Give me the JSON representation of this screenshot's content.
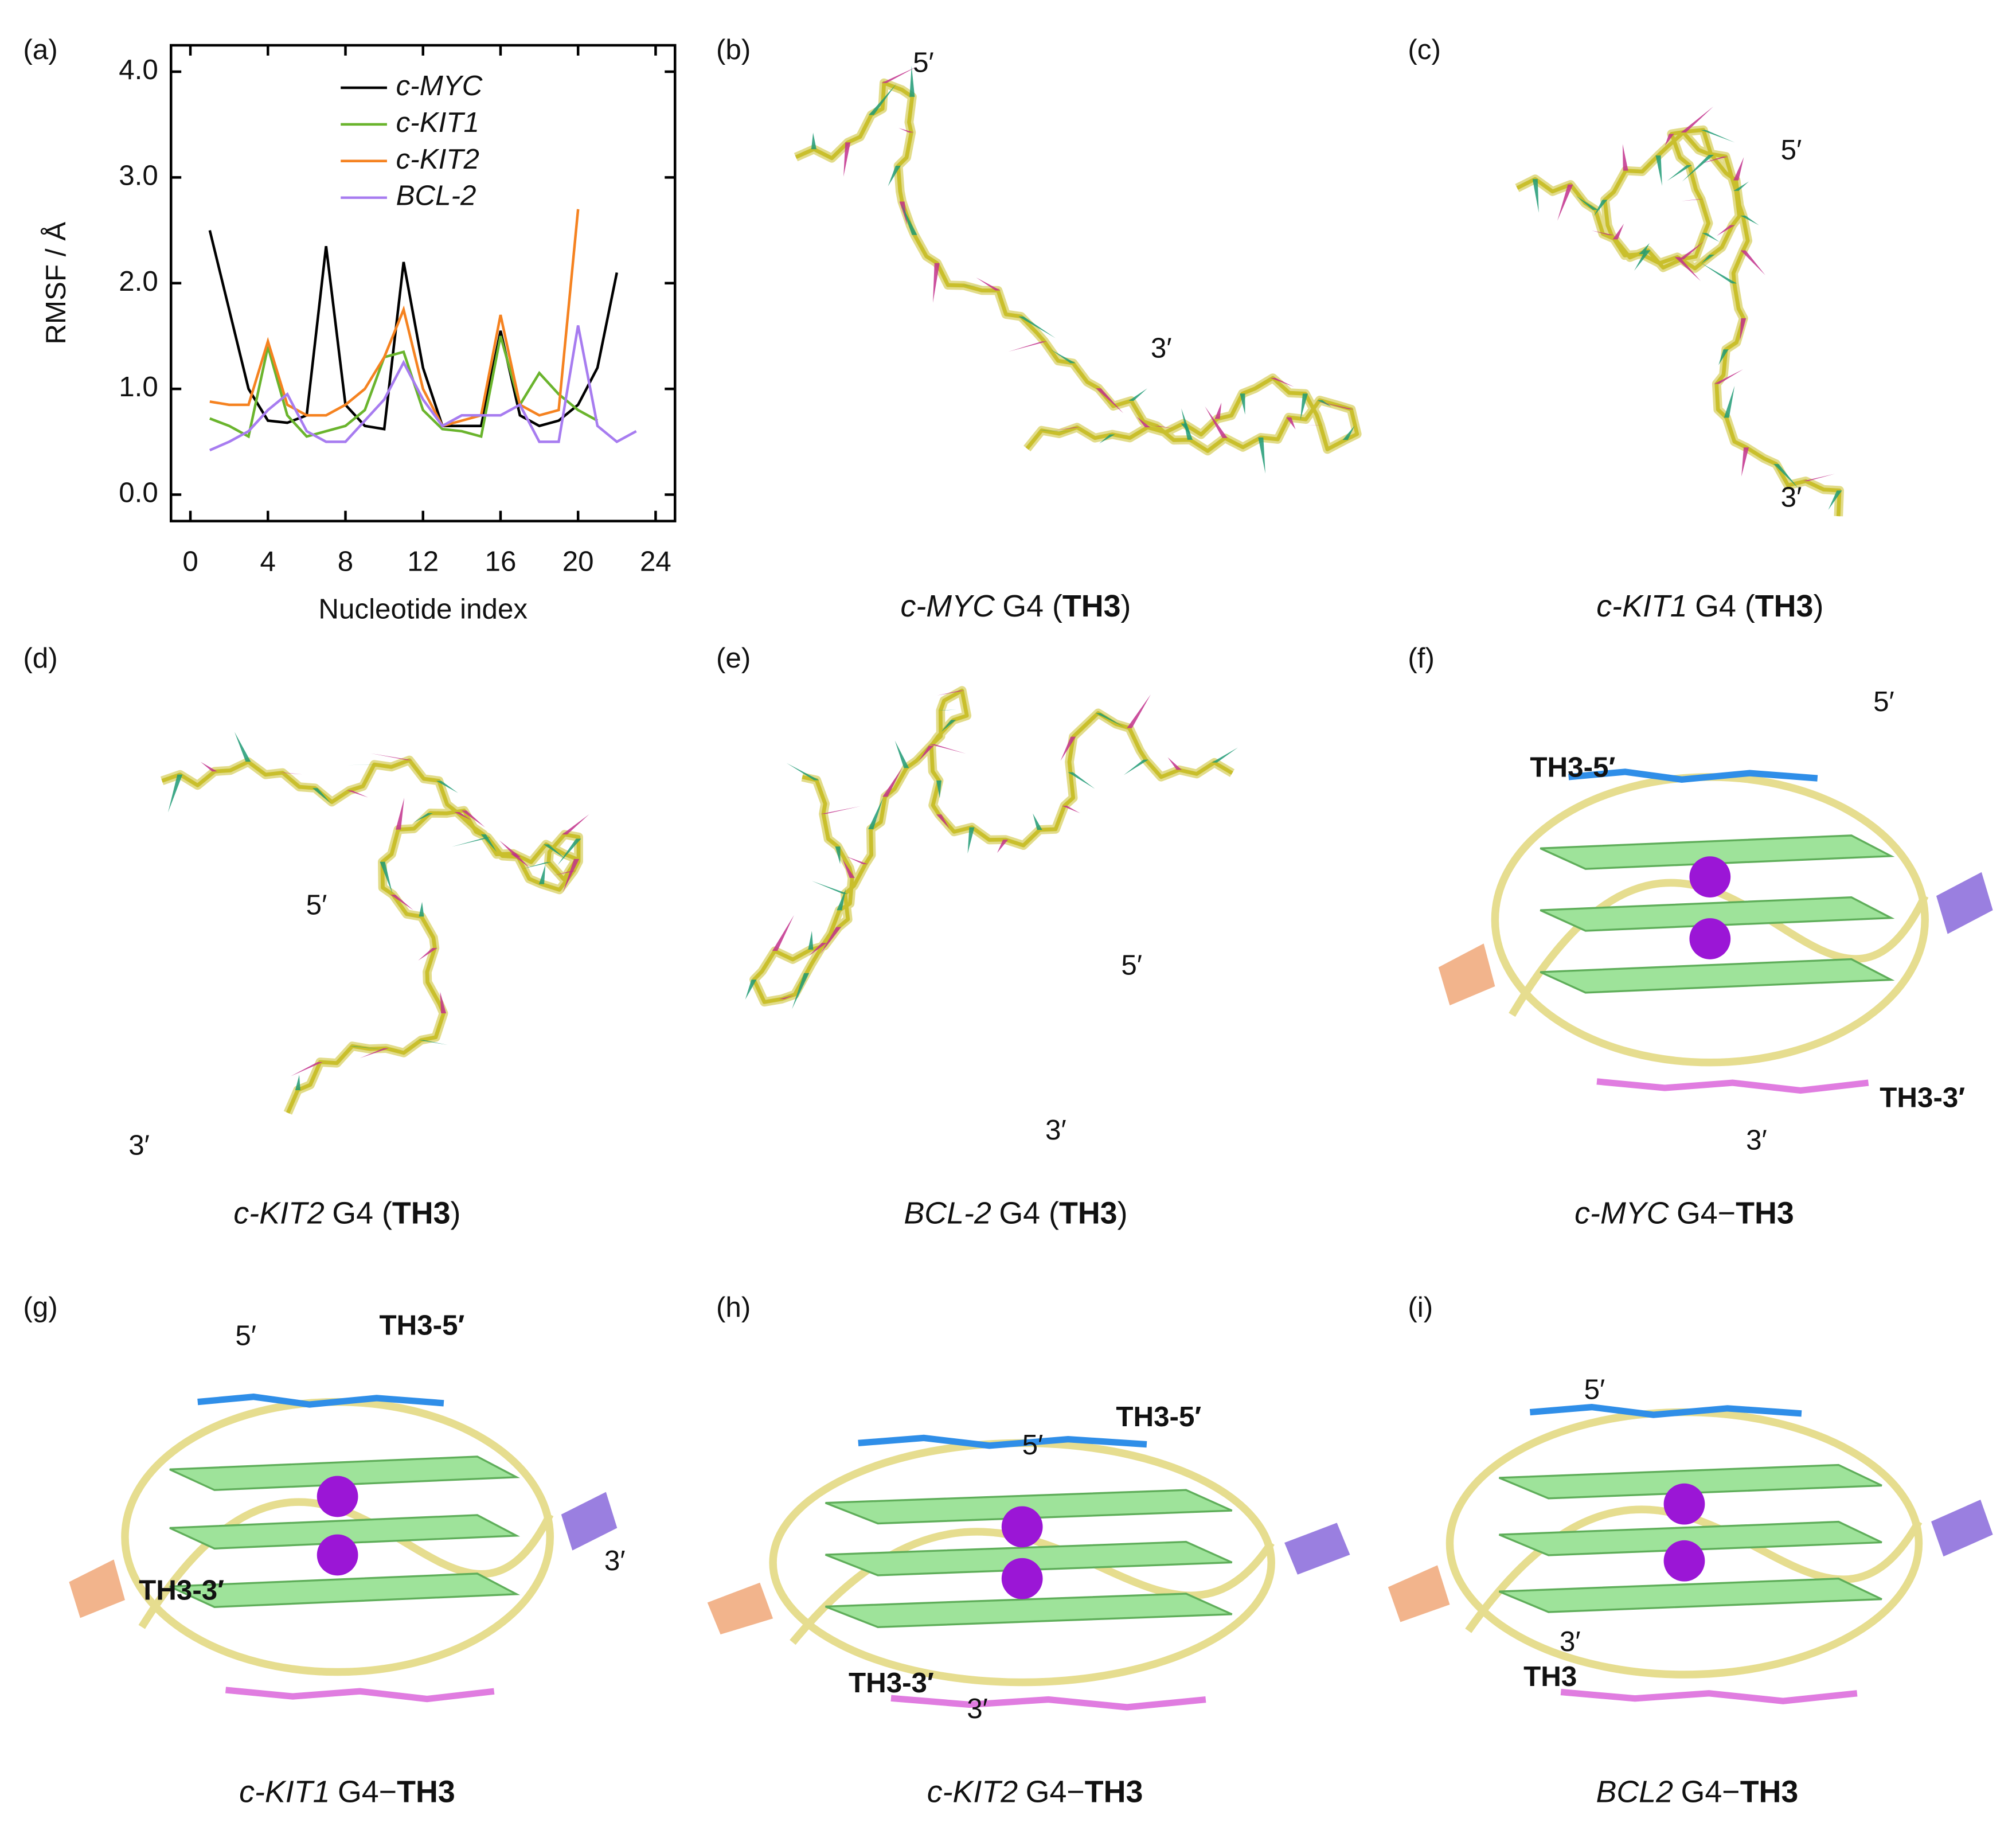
{
  "chart_data": {
    "type": "line",
    "xlabel": "Nucleotide index",
    "ylabel": "RMSF / Å",
    "x": [
      1,
      2,
      3,
      4,
      5,
      6,
      7,
      8,
      9,
      10,
      11,
      12,
      13,
      14,
      15,
      16,
      17,
      18,
      19,
      20,
      21,
      22,
      23
    ],
    "series": [
      {
        "name": "c-MYC",
        "color": "#000000",
        "values": [
          2.5,
          1.75,
          1.0,
          0.7,
          0.68,
          0.75,
          2.35,
          0.85,
          0.65,
          0.62,
          2.2,
          1.2,
          0.65,
          0.65,
          0.65,
          1.55,
          0.75,
          0.65,
          0.7,
          0.85,
          1.2,
          2.1,
          null
        ]
      },
      {
        "name": "c-KIT1",
        "color": "#6ab42d",
        "values": [
          0.72,
          0.65,
          0.55,
          1.4,
          0.75,
          0.55,
          0.6,
          0.65,
          0.8,
          1.3,
          1.35,
          0.8,
          0.62,
          0.6,
          0.55,
          1.5,
          0.85,
          1.15,
          0.95,
          0.8,
          0.7,
          null,
          null
        ]
      },
      {
        "name": "c-KIT2",
        "color": "#f58220",
        "values": [
          0.88,
          0.85,
          0.85,
          1.45,
          0.85,
          0.75,
          0.75,
          0.85,
          1.0,
          1.3,
          1.75,
          1.0,
          0.65,
          0.7,
          0.75,
          1.7,
          0.85,
          0.75,
          0.8,
          2.7,
          null,
          null,
          null
        ]
      },
      {
        "name": "BCL-2",
        "color": "#a77cf0",
        "values": [
          0.42,
          0.5,
          0.6,
          0.8,
          0.95,
          0.6,
          0.5,
          0.5,
          0.7,
          0.9,
          1.25,
          0.9,
          0.65,
          0.75,
          0.75,
          0.75,
          0.85,
          0.5,
          0.5,
          1.6,
          0.65,
          0.5,
          0.6
        ]
      }
    ],
    "xlim": [
      -1,
      25
    ],
    "xticks": [
      0,
      4,
      8,
      12,
      16,
      20,
      24
    ],
    "ylim": [
      -0.25,
      4.25
    ],
    "yticks": [
      {
        "value": 0,
        "label": "0.0"
      },
      {
        "value": 1,
        "label": "1.0"
      },
      {
        "value": 2,
        "label": "2.0"
      },
      {
        "value": 3,
        "label": "3.0"
      },
      {
        "value": 4,
        "label": "4.0"
      }
    ],
    "grid": false,
    "legend": "top-right"
  },
  "chart_label": "(a)",
  "panels": [
    {
      "label": "(b)",
      "kind": "backbone",
      "caption": {
        "gene": "c-MYC",
        "middle": "G4 (",
        "ligand": "TH3",
        "end": ")"
      },
      "annotations": [
        {
          "text": "5′",
          "color": "#000000"
        },
        {
          "text": "3′",
          "color": "#000000"
        }
      ]
    },
    {
      "label": "(c)",
      "kind": "backbone",
      "caption": {
        "gene": "c-KIT1",
        "middle": "G4 (",
        "ligand": "TH3",
        "end": ")"
      },
      "annotations": [
        {
          "text": "5′",
          "color": "#000000"
        },
        {
          "text": "3′",
          "color": "#000000"
        }
      ]
    },
    {
      "label": "(d)",
      "kind": "backbone",
      "caption": {
        "gene": "c-KIT2",
        "middle": "G4 (",
        "ligand": "TH3",
        "end": ")"
      },
      "annotations": [
        {
          "text": "5′",
          "color": "#000000"
        },
        {
          "text": "3′",
          "color": "#000000"
        }
      ]
    },
    {
      "label": "(e)",
      "kind": "backbone",
      "caption": {
        "gene": "BCL-2",
        "middle": "G4 (",
        "ligand": "TH3",
        "end": ")"
      },
      "annotations": [
        {
          "text": "5′",
          "color": "#000000"
        },
        {
          "text": "3′",
          "color": "#000000"
        }
      ]
    },
    {
      "label": "(f)",
      "kind": "complex",
      "caption": {
        "gene": "c-MYC",
        "middle": "G4−",
        "ligand": "TH3"
      },
      "annotations": [
        {
          "text": "5′",
          "color": "#000000"
        },
        {
          "text": "3′",
          "color": "#000000"
        },
        {
          "text": "TH3-5′",
          "color": "#1e6fe0"
        },
        {
          "text": "TH3-3′",
          "color": "#e455e4"
        }
      ]
    },
    {
      "label": "(g)",
      "kind": "complex",
      "caption": {
        "gene": "c-KIT1",
        "middle": "G4−",
        "ligand": "TH3"
      },
      "annotations": [
        {
          "text": "5′",
          "color": "#000000"
        },
        {
          "text": "3′",
          "color": "#000000"
        },
        {
          "text": "TH3-5′",
          "color": "#1e6fe0"
        },
        {
          "text": "TH3-3′",
          "color": "#e455e4"
        }
      ]
    },
    {
      "label": "(h)",
      "kind": "complex",
      "caption": {
        "gene": "c-KIT2",
        "middle": "G4−",
        "ligand": "TH3"
      },
      "annotations": [
        {
          "text": "5′",
          "color": "#000000"
        },
        {
          "text": "3′",
          "color": "#000000"
        },
        {
          "text": "TH3-5′",
          "color": "#1e6fe0"
        },
        {
          "text": "TH3-3′",
          "color": "#e455e4"
        }
      ]
    },
    {
      "label": "(i)",
      "kind": "complex",
      "caption": {
        "gene": "BCL2",
        "middle": "G4−",
        "ligand": "TH3"
      },
      "annotations": [
        {
          "text": "5′",
          "color": "#000000"
        },
        {
          "text": "3′",
          "color": "#000000"
        },
        {
          "text": "TH3",
          "color": "#e455e4"
        }
      ]
    }
  ]
}
